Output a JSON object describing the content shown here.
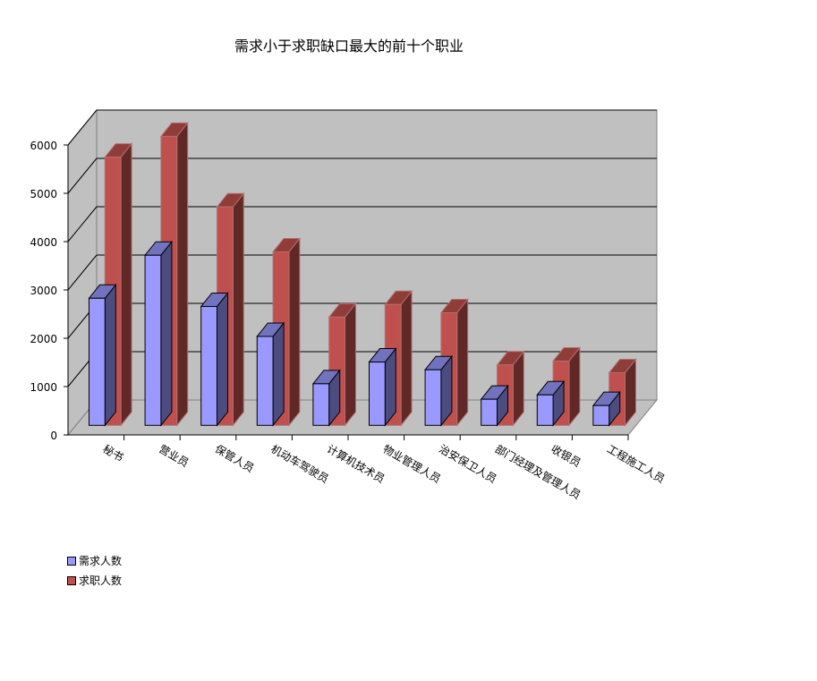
{
  "chart_data": {
    "type": "bar",
    "title": "需求小于求职缺口最大的前十个职业",
    "categories": [
      "秘书",
      "营业员",
      "保管人员",
      "机动车驾驶员",
      "计算机技术员",
      "物业管理人员",
      "治安保卫人员",
      "部门经理及管理人员",
      "收银员",
      "工程施工人员"
    ],
    "series": [
      {
        "name": "需求人数",
        "color": "#9999ff",
        "values": [
          2630,
          3520,
          2460,
          1840,
          860,
          1310,
          1150,
          540,
          630,
          410
        ]
      },
      {
        "name": "求职人数",
        "color": "#c0504d",
        "values": [
          5550,
          5980,
          4520,
          3590,
          2240,
          2500,
          2330,
          1250,
          1330,
          1090
        ]
      }
    ],
    "ylim": [
      0,
      6000
    ],
    "yticks": [
      0,
      1000,
      2000,
      3000,
      4000,
      5000,
      6000
    ],
    "grid": true,
    "style": "3d-clustered-column",
    "legend_position": "bottom-left",
    "wall_color": "#c0c0c0"
  }
}
